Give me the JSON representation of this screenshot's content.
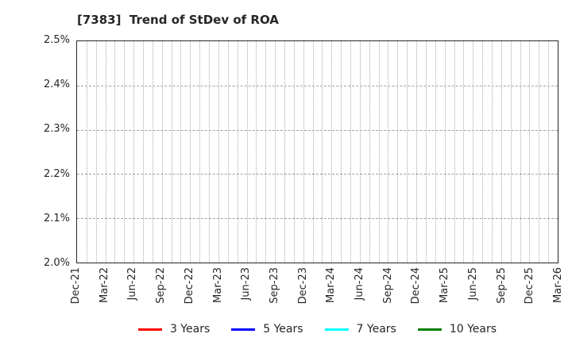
{
  "title": "[7383]  Trend of StDev of ROA",
  "chart_data": {
    "type": "line",
    "title": "[7383]  Trend of StDev of ROA",
    "xlabel": "",
    "ylabel": "",
    "x_tick_labels": [
      "Dec-21",
      "Mar-22",
      "Jun-22",
      "Sep-22",
      "Dec-22",
      "Mar-23",
      "Jun-23",
      "Sep-23",
      "Dec-23",
      "Mar-24",
      "Jun-24",
      "Sep-24",
      "Dec-24",
      "Mar-25",
      "Jun-25",
      "Sep-25",
      "Dec-25",
      "Mar-26"
    ],
    "months_between_ticks": 3,
    "y_tick_labels": [
      "2.0%",
      "2.1%",
      "2.2%",
      "2.3%",
      "2.4%",
      "2.5%"
    ],
    "ylim": [
      2.0,
      2.5
    ],
    "grid": true,
    "vertical_grid_interval": "monthly",
    "legend_position": "bottom",
    "series": [
      {
        "name": "3 Years",
        "color": "#ff0000",
        "values": []
      },
      {
        "name": "5 Years",
        "color": "#0000ff",
        "values": []
      },
      {
        "name": "7 Years",
        "color": "#00ffff",
        "values": []
      },
      {
        "name": "10 Years",
        "color": "#008000",
        "values": []
      }
    ]
  }
}
